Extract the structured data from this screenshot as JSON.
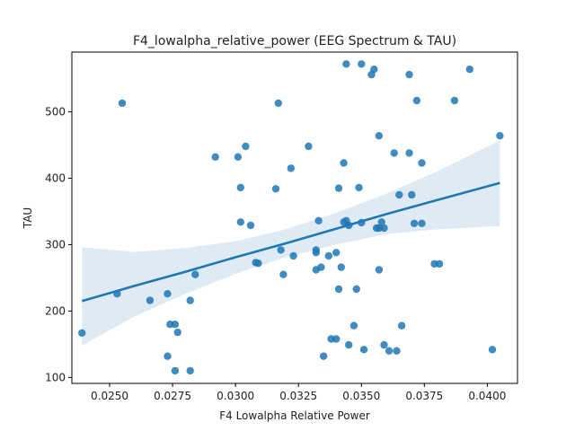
{
  "chart_data": {
    "type": "scatter",
    "title": "F4_lowalpha_relative_power (EEG Spectrum & TAU)",
    "xlabel": "F4 Lowalpha Relative Power",
    "ylabel": "TAU",
    "xlim": [
      0.0235,
      0.0412
    ],
    "ylim": [
      91,
      590
    ],
    "xticks": [
      0.025,
      0.0275,
      0.03,
      0.0325,
      0.035,
      0.0375,
      0.04
    ],
    "xtick_labels": [
      "0.0250",
      "0.0275",
      "0.0300",
      "0.0325",
      "0.0350",
      "0.0375",
      "0.0400"
    ],
    "yticks": [
      100,
      200,
      300,
      400,
      500
    ],
    "ytick_labels": [
      "100",
      "200",
      "300",
      "400",
      "500"
    ],
    "grid": false,
    "colors": {
      "points": "#1f77b4",
      "line": "#1f77b4",
      "band": "#1f77b4"
    },
    "points": [
      [
        0.0239,
        167
      ],
      [
        0.0253,
        226
      ],
      [
        0.0255,
        513
      ],
      [
        0.0266,
        216
      ],
      [
        0.0273,
        226
      ],
      [
        0.0273,
        132
      ],
      [
        0.0274,
        180
      ],
      [
        0.0276,
        180
      ],
      [
        0.0276,
        110
      ],
      [
        0.0277,
        168
      ],
      [
        0.0282,
        110
      ],
      [
        0.0282,
        216
      ],
      [
        0.0284,
        255
      ],
      [
        0.0292,
        432
      ],
      [
        0.0301,
        432
      ],
      [
        0.0302,
        386
      ],
      [
        0.0302,
        334
      ],
      [
        0.0304,
        448
      ],
      [
        0.0306,
        329
      ],
      [
        0.0308,
        273
      ],
      [
        0.0309,
        272
      ],
      [
        0.0316,
        384
      ],
      [
        0.0317,
        513
      ],
      [
        0.0318,
        292
      ],
      [
        0.0319,
        255
      ],
      [
        0.0322,
        415
      ],
      [
        0.0323,
        283
      ],
      [
        0.0329,
        448
      ],
      [
        0.0332,
        288
      ],
      [
        0.0332,
        292
      ],
      [
        0.0332,
        262
      ],
      [
        0.0333,
        336
      ],
      [
        0.0334,
        266
      ],
      [
        0.0335,
        132
      ],
      [
        0.0337,
        283
      ],
      [
        0.0338,
        158
      ],
      [
        0.034,
        158
      ],
      [
        0.034,
        288
      ],
      [
        0.0341,
        233
      ],
      [
        0.0341,
        385
      ],
      [
        0.0342,
        266
      ],
      [
        0.0343,
        334
      ],
      [
        0.0343,
        423
      ],
      [
        0.0344,
        336
      ],
      [
        0.0344,
        572
      ],
      [
        0.0345,
        329
      ],
      [
        0.0345,
        149
      ],
      [
        0.0347,
        178
      ],
      [
        0.0348,
        233
      ],
      [
        0.0349,
        386
      ],
      [
        0.035,
        333
      ],
      [
        0.035,
        572
      ],
      [
        0.0351,
        142
      ],
      [
        0.0354,
        556
      ],
      [
        0.0355,
        564
      ],
      [
        0.0356,
        325
      ],
      [
        0.0357,
        464
      ],
      [
        0.0357,
        262
      ],
      [
        0.0357,
        325
      ],
      [
        0.0358,
        334
      ],
      [
        0.0359,
        325
      ],
      [
        0.0359,
        149
      ],
      [
        0.0361,
        140
      ],
      [
        0.0363,
        438
      ],
      [
        0.0364,
        140
      ],
      [
        0.0365,
        375
      ],
      [
        0.0366,
        178
      ],
      [
        0.0369,
        438
      ],
      [
        0.0369,
        556
      ],
      [
        0.037,
        375
      ],
      [
        0.0371,
        332
      ],
      [
        0.0372,
        517
      ],
      [
        0.0374,
        332
      ],
      [
        0.0374,
        423
      ],
      [
        0.0379,
        271
      ],
      [
        0.0381,
        271
      ],
      [
        0.0387,
        517
      ],
      [
        0.0393,
        564
      ],
      [
        0.0402,
        142
      ],
      [
        0.0405,
        464
      ]
    ],
    "regression": {
      "x": [
        0.0239,
        0.026,
        0.028,
        0.03,
        0.032,
        0.034,
        0.036,
        0.038,
        0.0405
      ],
      "fit": [
        215,
        238,
        259,
        281,
        302,
        324,
        346,
        367,
        393
      ],
      "lower": [
        148,
        192,
        226,
        256,
        281,
        300,
        316,
        323,
        328
      ],
      "upper": [
        296,
        289,
        295,
        305,
        323,
        348,
        377,
        410,
        457
      ]
    }
  }
}
